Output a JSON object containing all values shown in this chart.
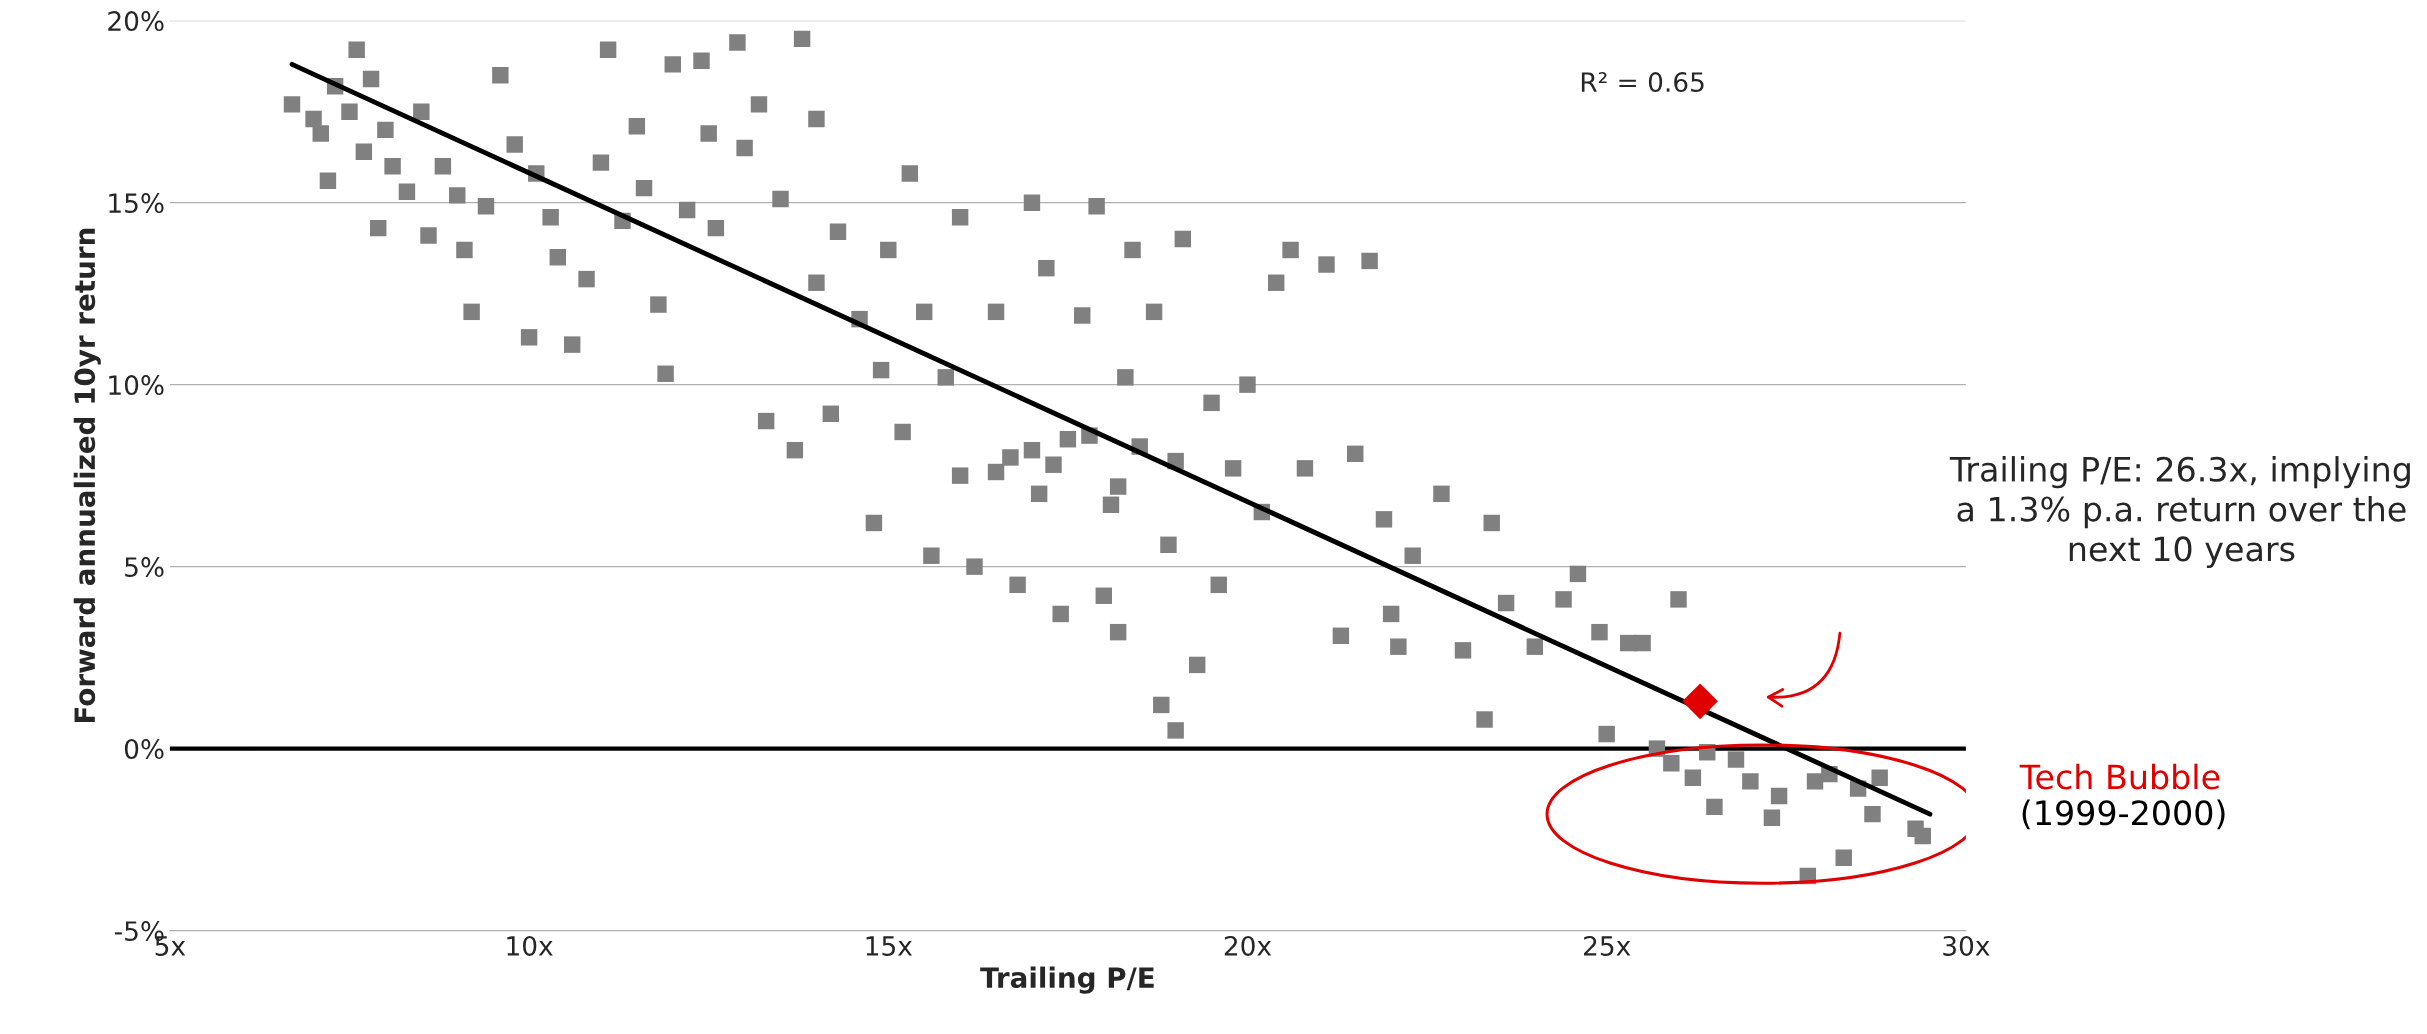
{
  "chart_data": {
    "type": "scatter",
    "xlabel": "Trailing P/E",
    "ylabel": "Forward annualized 10yr return",
    "xlim": [
      5,
      30
    ],
    "xticks": [
      {
        "value": 5,
        "label": "5x"
      },
      {
        "value": 10,
        "label": "10x"
      },
      {
        "value": 15,
        "label": "15x"
      },
      {
        "value": 20,
        "label": "20x"
      },
      {
        "value": 25,
        "label": "25x"
      },
      {
        "value": 30,
        "label": "30x"
      }
    ],
    "ylim": [
      -5,
      20
    ],
    "yticks": [
      {
        "value": -5,
        "label": "-5%"
      },
      {
        "value": 0,
        "label": "0%"
      },
      {
        "value": 5,
        "label": "5%"
      },
      {
        "value": 10,
        "label": "10%"
      },
      {
        "value": 15,
        "label": "15%"
      },
      {
        "value": 20,
        "label": "20%"
      }
    ],
    "grid": "y",
    "legend": false,
    "ref_lines": [
      {
        "axis": "y",
        "value": 0,
        "color": "#000000"
      }
    ],
    "series": [
      {
        "color": "#808080",
        "marker": "square",
        "x": [
          6.7,
          7.0,
          7.1,
          7.2,
          7.3,
          7.5,
          7.6,
          7.7,
          7.8,
          7.9,
          8.0,
          8.1,
          8.3,
          8.5,
          8.6,
          8.8,
          9.0,
          9.1,
          9.2,
          9.4,
          9.6,
          9.8,
          10.0,
          10.1,
          10.3,
          10.6,
          10.4,
          10.8,
          11.0,
          11.1,
          11.3,
          11.5,
          11.6,
          11.8,
          11.9,
          12.0,
          12.2,
          12.4,
          12.5,
          12.6,
          12.9,
          13.0,
          13.2,
          13.3,
          13.5,
          13.7,
          13.8,
          14.0,
          14.0,
          14.2,
          14.3,
          14.6,
          14.8,
          14.9,
          15.0,
          15.2,
          15.3,
          15.5,
          15.6,
          15.8,
          16.0,
          16.0,
          16.2,
          16.5,
          16.7,
          16.8,
          17.0,
          17.1,
          17.2,
          17.4,
          17.5,
          17.7,
          17.9,
          18.0,
          18.1,
          18.2,
          18.3,
          18.4,
          18.5,
          18.7,
          18.8,
          18.9,
          19.0,
          19.1,
          19.3,
          19.5,
          19.6,
          19.8,
          20.0,
          20.2,
          20.4,
          20.6,
          20.8,
          21.1,
          21.3,
          21.5,
          21.7,
          21.9,
          22.0,
          22.1,
          22.3,
          22.7,
          23.0,
          23.3,
          23.4,
          23.6,
          24.0,
          24.4,
          24.6,
          24.9,
          25.0,
          25.3,
          25.5,
          25.7,
          25.9,
          26.0,
          26.2,
          26.4,
          26.5,
          26.8,
          27.0,
          27.3,
          27.4,
          27.8,
          27.9,
          28.1,
          28.3,
          28.5,
          28.7,
          28.8,
          29.3,
          29.4,
          16.5,
          17.0,
          17.3,
          17.8,
          18.2,
          19.0
        ],
        "values": [
          17.7,
          17.3,
          16.9,
          15.6,
          18.2,
          17.5,
          19.2,
          16.4,
          18.4,
          14.3,
          17.0,
          16.0,
          15.3,
          17.5,
          14.1,
          16.0,
          15.2,
          13.7,
          12.0,
          14.9,
          18.5,
          16.6,
          11.3,
          15.8,
          14.6,
          11.1,
          13.5,
          12.9,
          16.1,
          19.2,
          14.5,
          17.1,
          15.4,
          12.2,
          10.3,
          18.8,
          14.8,
          18.9,
          16.9,
          14.3,
          19.4,
          16.5,
          17.7,
          9.0,
          15.1,
          8.2,
          19.5,
          12.8,
          17.3,
          9.2,
          14.2,
          11.8,
          6.2,
          10.4,
          13.7,
          8.7,
          15.8,
          12.0,
          5.3,
          10.2,
          7.5,
          14.6,
          5.0,
          12.0,
          8.0,
          4.5,
          15.0,
          7.0,
          13.2,
          3.7,
          8.5,
          11.9,
          14.9,
          4.2,
          6.7,
          3.2,
          10.2,
          13.7,
          8.3,
          12.0,
          1.2,
          5.6,
          0.5,
          14.0,
          2.3,
          9.5,
          4.5,
          7.7,
          10.0,
          6.5,
          12.8,
          13.7,
          7.7,
          13.3,
          3.1,
          8.1,
          13.4,
          6.3,
          3.7,
          2.8,
          5.3,
          7.0,
          2.7,
          0.8,
          6.2,
          4.0,
          2.8,
          4.1,
          4.8,
          3.2,
          0.4,
          2.9,
          2.9,
          0.0,
          -0.4,
          4.1,
          -0.8,
          -0.1,
          -1.6,
          -0.3,
          -0.9,
          -1.9,
          -1.3,
          -3.5,
          -0.9,
          -0.7,
          -3.0,
          -1.1,
          -1.8,
          -0.8,
          -2.2,
          -2.4,
          7.6,
          8.2,
          7.8,
          8.6,
          7.2,
          7.9
        ]
      },
      {
        "type": "line",
        "color": "#000000",
        "marker": "none",
        "x": [
          6.7,
          29.5
        ],
        "values": [
          18.8,
          -1.8
        ]
      },
      {
        "color": "#e00000",
        "marker": "diamond",
        "x": [
          26.3
        ],
        "values": [
          1.3
        ]
      }
    ],
    "annotations": [
      "R² = 0.65",
      "Tech Bubble\n(1999-2000)",
      "Trailing P/E: 26.3x, implying\na 1.3% p.a. return over the\nnext 10 years"
    ]
  }
}
